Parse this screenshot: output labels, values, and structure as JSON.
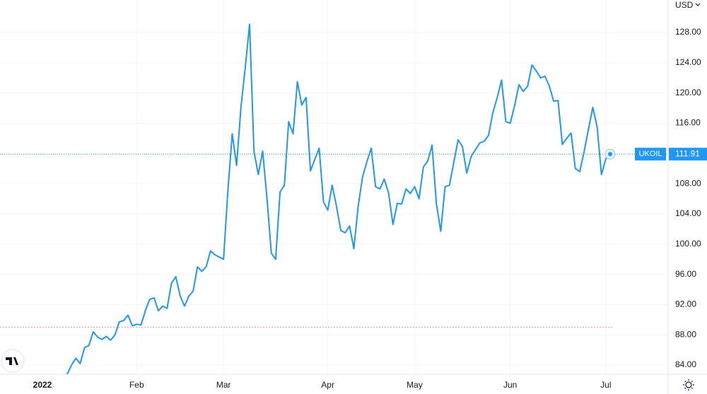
{
  "chart_data": {
    "type": "line",
    "currency": "USD",
    "categories": [
      null,
      null,
      null,
      null,
      null,
      null,
      null,
      null,
      null,
      null,
      null,
      null,
      null,
      null,
      null,
      null,
      "Feb",
      null,
      null,
      null,
      null,
      null,
      null,
      null,
      null,
      null,
      null,
      null,
      null,
      null,
      null,
      null,
      null,
      null,
      null,
      null,
      "Mar",
      null,
      null,
      null,
      null,
      null,
      null,
      null,
      null,
      null,
      null,
      null,
      null,
      null,
      null,
      null,
      null,
      null,
      null,
      null,
      null,
      null,
      null,
      null,
      "Apr",
      null,
      null,
      null,
      null,
      null,
      null,
      null,
      null,
      null,
      null,
      null,
      null,
      null,
      null,
      null,
      null,
      null,
      null,
      null,
      "May",
      null,
      null,
      null,
      null,
      null,
      null,
      null,
      null,
      null,
      null,
      null,
      null,
      null,
      null,
      null,
      null,
      null,
      null,
      null,
      null,
      null,
      "Jun",
      null,
      null,
      null,
      null,
      null,
      null,
      null,
      null,
      null,
      null,
      null,
      null,
      null,
      null,
      null,
      null,
      null,
      null,
      null,
      null,
      null,
      "Jul",
      null
    ],
    "year_label": "2022",
    "series": [
      {
        "name": "UKOIL",
        "color": "#2196f3",
        "values": [
          82.8,
          84.0,
          84.9,
          84.2,
          86.3,
          86.6,
          88.4,
          87.7,
          87.4,
          87.8,
          87.3,
          88.0,
          89.7,
          89.9,
          90.6,
          89.2,
          89.4,
          89.3,
          91.2,
          92.7,
          92.9,
          91.2,
          91.8,
          91.5,
          94.8,
          95.7,
          93.2,
          91.8,
          93.1,
          93.8,
          97.0,
          96.4,
          97.0,
          99.1,
          98.6,
          98.3,
          98.0,
          107.1,
          114.6,
          110.4,
          118.1,
          123.4,
          129.1,
          112.3,
          109.2,
          112.3,
          106.1,
          98.8,
          98.0,
          106.9,
          107.8,
          116.2,
          114.6,
          121.5,
          118.4,
          119.4,
          109.7,
          111.2,
          112.7,
          105.6,
          104.5,
          107.8,
          105.0,
          101.8,
          101.5,
          102.4,
          99.4,
          105.0,
          108.9,
          110.9,
          112.7,
          107.6,
          107.3,
          108.6,
          106.7,
          102.6,
          105.4,
          105.3,
          107.3,
          106.7,
          107.6,
          106.0,
          110.2,
          111.0,
          113.1,
          105.4,
          101.7,
          107.6,
          107.8,
          110.8,
          113.8,
          112.9,
          109.4,
          111.6,
          112.5,
          113.4,
          113.6,
          114.4,
          117.4,
          119.4,
          121.7,
          116.2,
          116.0,
          118.3,
          121.1,
          120.2,
          120.9,
          123.7,
          122.9,
          122.0,
          122.2,
          120.9,
          118.9,
          119.0,
          113.2,
          114.0,
          114.7,
          110.0,
          109.6,
          112.2,
          115.2,
          118.1,
          115.5,
          109.2,
          111.3,
          111.91
        ]
      }
    ],
    "reference_level": 89,
    "ylim": [
      82.79,
      132.3
    ],
    "yticks": [
      {
        "value": 84,
        "label": "84.00"
      },
      {
        "value": 88,
        "label": "88.00"
      },
      {
        "value": 92,
        "label": "92.00"
      },
      {
        "value": 96,
        "label": "96.00"
      },
      {
        "value": 100,
        "label": "100.00"
      },
      {
        "value": 104,
        "label": "104.00"
      },
      {
        "value": 108,
        "label": "108.00"
      },
      {
        "value": 112,
        "label": "112.00"
      },
      {
        "value": 116,
        "label": "116.00"
      },
      {
        "value": 120,
        "label": "120.00"
      },
      {
        "value": 124,
        "label": "124.00"
      },
      {
        "value": 128,
        "label": "128.00"
      }
    ],
    "grid": true
  }
}
